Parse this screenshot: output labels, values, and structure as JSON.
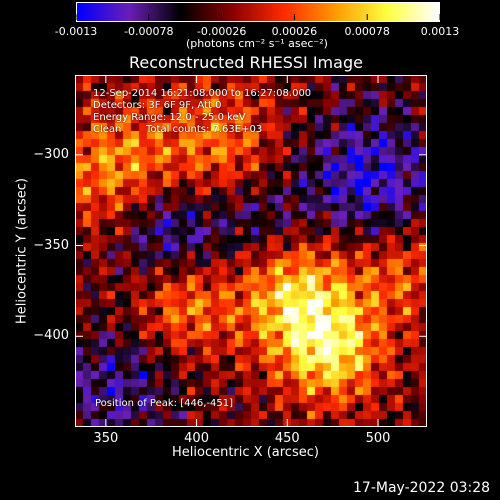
{
  "chart_data": {
    "type": "heatmap",
    "title": "Reconstructed RHESSI Image",
    "xlabel": "Heliocentric X (arcsec)",
    "ylabel": "Heliocentric Y (arcsec)",
    "xlim": [
      333,
      527
    ],
    "ylim": [
      -450,
      -256
    ],
    "x_ticks": [
      "350",
      "400",
      "450",
      "500"
    ],
    "x_tick_values": [
      350,
      400,
      450,
      500
    ],
    "y_ticks": [
      "-300",
      "-350",
      "-400"
    ],
    "y_tick_values": [
      -300,
      -350,
      -400
    ],
    "colorbar": {
      "ticks": [
        "-0.0013",
        "-0.00078",
        "-0.00026",
        "0.00026",
        "0.00078",
        "0.0013"
      ],
      "tick_values": [
        -0.0013,
        -0.00078,
        -0.00026,
        0.00026,
        0.00078,
        0.0013
      ],
      "range": [
        -0.0013,
        0.0013
      ],
      "unit_label": "(photons cm⁻² s⁻¹ asec⁻²)",
      "colormap": [
        "#0000ff",
        "#6a1fb8",
        "#000000",
        "#8a0000",
        "#ff2a00",
        "#ff9a00",
        "#ffff40",
        "#ffffff"
      ]
    },
    "annotations": {
      "time_range": "12-Sep-2014 16:21:08.000 to 16:27:08.000",
      "detectors": "Detectors: 3F 6F 9F, Att 0",
      "energy": "Energy Range: 12.0 - 25.0 keV",
      "clean": "Clean",
      "counts": "Total counts: 7.63E+03",
      "peak": "Position of Peak: [446,-451]"
    }
  },
  "footer": {
    "date": "17-May-2022 03:28"
  }
}
